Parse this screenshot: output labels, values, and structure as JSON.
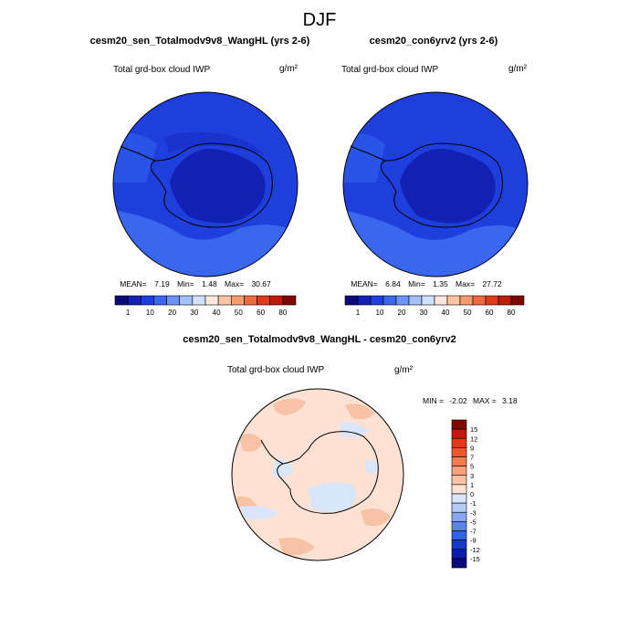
{
  "figure": {
    "title": "DJF"
  },
  "chart_data": [
    {
      "type": "heatmap",
      "projection": "south-polar-stereographic",
      "title": "cesm20_sen_Totalmodv9v8_WangHL (yrs 2-6)",
      "left_string": "Total grd-box cloud IWP",
      "units_label": "g/m²",
      "stats": {
        "mean_label": "MEAN=",
        "mean": "7.19",
        "min_label": "Min=",
        "min": "1.48",
        "max_label": "Max=",
        "max": "30.67"
      },
      "colorbar": {
        "levels": [
          "1",
          "10",
          "20",
          "30",
          "40",
          "50",
          "60",
          "80"
        ],
        "colors": [
          "#0a0a7a",
          "#1320b4",
          "#1f3fdc",
          "#3a66f0",
          "#6c94f5",
          "#a3c0f7",
          "#d2e2fb",
          "#fde9dc",
          "#fac4a5",
          "#f49b72",
          "#ec6a3f",
          "#de3b1c",
          "#be1b0c",
          "#7e0804"
        ]
      },
      "field_description": "mostly 1-10 g/m2 over ocean, 1 g/m2 over Antarctic interior"
    },
    {
      "type": "heatmap",
      "projection": "south-polar-stereographic",
      "title": "cesm20_con6yrv2 (yrs 2-6)",
      "left_string": "Total grd-box cloud IWP",
      "units_label": "g/m²",
      "stats": {
        "mean_label": "MEAN=",
        "mean": "6.84",
        "min_label": "Min=",
        "min": "1.35",
        "max_label": "Max=",
        "max": "27.72"
      },
      "colorbar": {
        "levels": [
          "1",
          "10",
          "20",
          "30",
          "40",
          "50",
          "60",
          "80"
        ],
        "colors": [
          "#0a0a7a",
          "#1320b4",
          "#1f3fdc",
          "#3a66f0",
          "#6c94f5",
          "#a3c0f7",
          "#d2e2fb",
          "#fde9dc",
          "#fac4a5",
          "#f49b72",
          "#ec6a3f",
          "#de3b1c",
          "#be1b0c",
          "#7e0804"
        ]
      },
      "field_description": "mostly 1-10 g/m2 over ocean, 1 g/m2 over Antarctic interior"
    },
    {
      "type": "heatmap",
      "projection": "south-polar-stereographic",
      "title": "cesm20_sen_Totalmodv9v8_WangHL - cesm20_con6yrv2",
      "left_string": "Total grd-box cloud IWP",
      "units_label": "g/m²",
      "stats": {
        "min_label": "MIN =",
        "min": "-2.02",
        "max_label": "MAX =",
        "max": "3.18"
      },
      "colorbar": {
        "levels": [
          "15",
          "12",
          "9",
          "7",
          "5",
          "3",
          "1",
          "0",
          "-1",
          "-3",
          "-5",
          "-7",
          "-9",
          "-12",
          "-15"
        ],
        "colors": [
          "#7e0804",
          "#c11a0b",
          "#e23a17",
          "#f0562c",
          "#f47c50",
          "#f7a079",
          "#fac1a2",
          "#fde2d3",
          "#d9e6fa",
          "#b3cbf6",
          "#88a9f1",
          "#5b84ec",
          "#3361e6",
          "#1538cd",
          "#0b1bab",
          "#0a0a7a"
        ]
      },
      "field_description": "mostly 0 to 1 g/m2 differences, small areas of -1 to 0 near the coast and Weddell Sea"
    }
  ]
}
